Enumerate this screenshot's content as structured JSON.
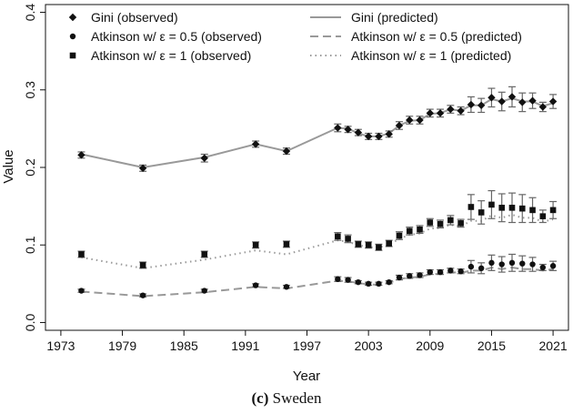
{
  "caption": {
    "tag": "(c)",
    "text": "Sweden"
  },
  "chart_data": {
    "type": "scatter",
    "xlabel": "Year",
    "ylabel": "Value",
    "xlim": [
      1971.5,
      2022.5
    ],
    "ylim": [
      -0.01,
      0.41
    ],
    "xticks": [
      1973,
      1979,
      1985,
      1991,
      1997,
      2003,
      2009,
      2015,
      2021
    ],
    "yticks": [
      0.0,
      0.1,
      0.2,
      0.3,
      0.4
    ],
    "ytick_labels": [
      "0.0",
      "0.1",
      "0.2",
      "0.3",
      "0.4"
    ],
    "grid": false,
    "legend_position": "top",
    "colors": {
      "points": "#111111",
      "lines": "#999999",
      "errorbars": "#666666",
      "axis": "#111111"
    },
    "series": [
      {
        "name": "Gini (observed)",
        "kind": "points",
        "marker": "diamond",
        "x": [
          1975,
          1981,
          1987,
          1992,
          1995,
          2000,
          2001,
          2002,
          2003,
          2004,
          2005,
          2006,
          2007,
          2008,
          2009,
          2010,
          2011,
          2012,
          2013,
          2014,
          2015,
          2016,
          2017,
          2018,
          2019,
          2020,
          2021
        ],
        "y": [
          0.216,
          0.199,
          0.212,
          0.23,
          0.221,
          0.251,
          0.249,
          0.245,
          0.24,
          0.24,
          0.243,
          0.254,
          0.261,
          0.261,
          0.27,
          0.27,
          0.275,
          0.273,
          0.281,
          0.28,
          0.29,
          0.285,
          0.291,
          0.284,
          0.286,
          0.278,
          0.285
        ],
        "err": [
          0.004,
          0.004,
          0.005,
          0.004,
          0.004,
          0.005,
          0.004,
          0.004,
          0.004,
          0.004,
          0.004,
          0.005,
          0.005,
          0.005,
          0.005,
          0.005,
          0.005,
          0.005,
          0.01,
          0.009,
          0.012,
          0.012,
          0.013,
          0.012,
          0.01,
          0.006,
          0.009
        ]
      },
      {
        "name": "Atkinson w/ ε = 0.5 (observed)",
        "kind": "points",
        "marker": "circle",
        "x": [
          1975,
          1981,
          1987,
          1992,
          1995,
          2000,
          2001,
          2002,
          2003,
          2004,
          2005,
          2006,
          2007,
          2008,
          2009,
          2010,
          2011,
          2012,
          2013,
          2014,
          2015,
          2016,
          2017,
          2018,
          2019,
          2020,
          2021
        ],
        "y": [
          0.041,
          0.035,
          0.041,
          0.048,
          0.046,
          0.056,
          0.055,
          0.052,
          0.05,
          0.05,
          0.052,
          0.058,
          0.06,
          0.061,
          0.065,
          0.065,
          0.067,
          0.066,
          0.072,
          0.07,
          0.077,
          0.075,
          0.077,
          0.076,
          0.075,
          0.071,
          0.073
        ],
        "err": [
          0.002,
          0.002,
          0.002,
          0.002,
          0.002,
          0.003,
          0.003,
          0.002,
          0.002,
          0.002,
          0.002,
          0.003,
          0.003,
          0.003,
          0.003,
          0.003,
          0.003,
          0.003,
          0.008,
          0.007,
          0.01,
          0.01,
          0.011,
          0.01,
          0.009,
          0.004,
          0.006
        ]
      },
      {
        "name": "Atkinson w/ ε = 1 (observed)",
        "kind": "points",
        "marker": "square",
        "x": [
          1975,
          1981,
          1987,
          1992,
          1995,
          2000,
          2001,
          2002,
          2003,
          2004,
          2005,
          2006,
          2007,
          2008,
          2009,
          2010,
          2011,
          2012,
          2013,
          2014,
          2015,
          2016,
          2017,
          2018,
          2019,
          2020,
          2021
        ],
        "y": [
          0.088,
          0.074,
          0.088,
          0.1,
          0.101,
          0.111,
          0.108,
          0.101,
          0.1,
          0.097,
          0.102,
          0.112,
          0.118,
          0.12,
          0.129,
          0.127,
          0.132,
          0.128,
          0.149,
          0.142,
          0.152,
          0.148,
          0.148,
          0.147,
          0.145,
          0.137,
          0.145
        ],
        "err": [
          0.004,
          0.004,
          0.004,
          0.004,
          0.004,
          0.005,
          0.005,
          0.004,
          0.004,
          0.004,
          0.004,
          0.005,
          0.005,
          0.005,
          0.005,
          0.005,
          0.006,
          0.005,
          0.016,
          0.015,
          0.018,
          0.018,
          0.019,
          0.018,
          0.016,
          0.008,
          0.011
        ]
      },
      {
        "name": "Gini (predicted)",
        "kind": "line",
        "dash": "solid",
        "x": [
          1975,
          1981,
          1987,
          1992,
          1995,
          2000,
          2001,
          2002,
          2003,
          2004,
          2005,
          2006,
          2007,
          2008,
          2009,
          2010,
          2011,
          2012,
          2013,
          2014,
          2015,
          2016,
          2017,
          2018,
          2019,
          2020,
          2021
        ],
        "y": [
          0.217,
          0.2,
          0.213,
          0.23,
          0.221,
          0.251,
          0.25,
          0.244,
          0.24,
          0.24,
          0.244,
          0.254,
          0.26,
          0.261,
          0.269,
          0.27,
          0.275,
          0.273,
          0.28,
          0.28,
          0.288,
          0.285,
          0.289,
          0.285,
          0.285,
          0.279,
          0.283
        ]
      },
      {
        "name": "Atkinson w/ ε = 0.5 (predicted)",
        "kind": "line",
        "dash": "dashed",
        "x": [
          1975,
          1981,
          1987,
          1992,
          1995,
          2000,
          2001,
          2002,
          2003,
          2004,
          2005,
          2006,
          2007,
          2008,
          2009,
          2010,
          2011,
          2012,
          2013,
          2014,
          2015,
          2016,
          2017,
          2018,
          2019,
          2020,
          2021
        ],
        "y": [
          0.04,
          0.034,
          0.039,
          0.046,
          0.044,
          0.054,
          0.053,
          0.051,
          0.049,
          0.049,
          0.051,
          0.056,
          0.058,
          0.059,
          0.062,
          0.063,
          0.065,
          0.064,
          0.067,
          0.067,
          0.071,
          0.069,
          0.071,
          0.069,
          0.069,
          0.067,
          0.069
        ]
      },
      {
        "name": "Atkinson w/ ε = 1 (predicted)",
        "kind": "line",
        "dash": "dotted",
        "x": [
          1975,
          1981,
          1987,
          1992,
          1995,
          2000,
          2001,
          2002,
          2003,
          2004,
          2005,
          2006,
          2007,
          2008,
          2009,
          2010,
          2011,
          2012,
          2013,
          2014,
          2015,
          2016,
          2017,
          2018,
          2019,
          2020,
          2021
        ],
        "y": [
          0.084,
          0.07,
          0.081,
          0.093,
          0.088,
          0.106,
          0.104,
          0.1,
          0.097,
          0.097,
          0.1,
          0.108,
          0.113,
          0.115,
          0.121,
          0.122,
          0.126,
          0.124,
          0.131,
          0.131,
          0.138,
          0.135,
          0.139,
          0.135,
          0.135,
          0.13,
          0.133
        ]
      }
    ]
  }
}
